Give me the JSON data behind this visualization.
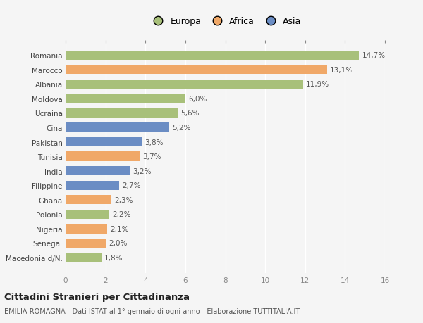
{
  "categories": [
    "Romania",
    "Marocco",
    "Albania",
    "Moldova",
    "Ucraina",
    "Cina",
    "Pakistan",
    "Tunisia",
    "India",
    "Filippine",
    "Ghana",
    "Polonia",
    "Nigeria",
    "Senegal",
    "Macedonia d/N."
  ],
  "values": [
    14.7,
    13.1,
    11.9,
    6.0,
    5.6,
    5.2,
    3.8,
    3.7,
    3.2,
    2.7,
    2.3,
    2.2,
    2.1,
    2.0,
    1.8
  ],
  "labels": [
    "14,7%",
    "13,1%",
    "11,9%",
    "6,0%",
    "5,6%",
    "5,2%",
    "3,8%",
    "3,7%",
    "3,2%",
    "2,7%",
    "2,3%",
    "2,2%",
    "2,1%",
    "2,0%",
    "1,8%"
  ],
  "continents": [
    "Europa",
    "Africa",
    "Europa",
    "Europa",
    "Europa",
    "Asia",
    "Asia",
    "Africa",
    "Asia",
    "Asia",
    "Africa",
    "Europa",
    "Africa",
    "Africa",
    "Europa"
  ],
  "colors": {
    "Europa": "#a8c07a",
    "Africa": "#f0a868",
    "Asia": "#6b8dc4"
  },
  "legend_labels": [
    "Europa",
    "Africa",
    "Asia"
  ],
  "title": "Cittadini Stranieri per Cittadinanza",
  "subtitle": "EMILIA-ROMAGNA - Dati ISTAT al 1° gennaio di ogni anno - Elaborazione TUTTITALIA.IT",
  "xlim": [
    0,
    16
  ],
  "xticks": [
    0,
    2,
    4,
    6,
    8,
    10,
    12,
    14,
    16
  ],
  "background_color": "#f5f5f5",
  "bar_height": 0.65
}
